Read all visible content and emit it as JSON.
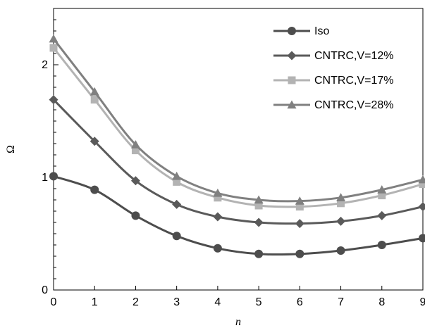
{
  "chart_data": {
    "type": "line",
    "xlabel": "n",
    "ylabel": "Ω",
    "xlim": [
      0,
      9
    ],
    "ylim": [
      0,
      2.5
    ],
    "x_ticks": [
      "0",
      "1",
      "2",
      "3",
      "4",
      "5",
      "6",
      "7",
      "8",
      "9"
    ],
    "y_ticks": [
      "0",
      "1",
      "2"
    ],
    "grid": false,
    "legend_position": "top-right",
    "series": [
      {
        "name": "Iso",
        "marker": "circle",
        "color": "#4d4d4d",
        "x": [
          0,
          1,
          2,
          3,
          4,
          5,
          6,
          7,
          8,
          9
        ],
        "y": [
          1.01,
          0.89,
          0.66,
          0.48,
          0.37,
          0.32,
          0.32,
          0.35,
          0.4,
          0.46
        ]
      },
      {
        "name": "CNTRC,V=12%",
        "marker": "diamond",
        "color": "#5a5a5a",
        "x": [
          0,
          1,
          2,
          3,
          4,
          5,
          6,
          7,
          8,
          9
        ],
        "y": [
          1.69,
          1.32,
          0.97,
          0.76,
          0.65,
          0.6,
          0.59,
          0.61,
          0.66,
          0.74
        ]
      },
      {
        "name": "CNTRC,V=17%",
        "marker": "square",
        "color": "#b3b3b3",
        "x": [
          0,
          1,
          2,
          3,
          4,
          5,
          6,
          7,
          8,
          9
        ],
        "y": [
          2.15,
          1.69,
          1.24,
          0.96,
          0.82,
          0.75,
          0.74,
          0.77,
          0.84,
          0.94
        ]
      },
      {
        "name": "CNTRC,V=28%",
        "marker": "triangle",
        "color": "#808080",
        "x": [
          0,
          1,
          2,
          3,
          4,
          5,
          6,
          7,
          8,
          9
        ],
        "y": [
          2.23,
          1.76,
          1.29,
          1.01,
          0.86,
          0.8,
          0.79,
          0.82,
          0.89,
          0.98
        ]
      }
    ]
  }
}
